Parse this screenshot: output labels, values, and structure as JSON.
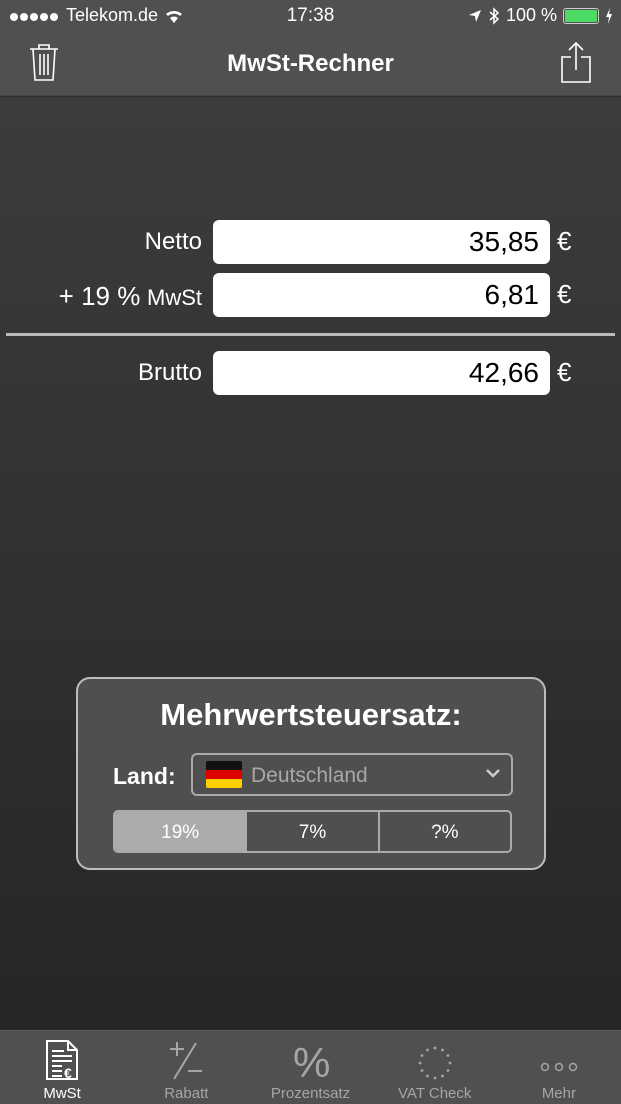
{
  "status": {
    "carrier": "Telekom.de",
    "time": "17:38",
    "battery": "100 %",
    "battery_level": 1.0,
    "battery_color": "#4cd964"
  },
  "nav": {
    "title": "MwSt-Rechner",
    "left_icon": "trash-icon",
    "right_icon": "share-icon"
  },
  "calc": {
    "netto_label": "Netto",
    "netto_value": "35,85",
    "rate_prefix": "+ 19 %",
    "mwst_label": "MwSt",
    "mwst_value": "6,81",
    "brutto_label": "Brutto",
    "brutto_value": "42,66",
    "currency": "€"
  },
  "panel": {
    "title": "Mehrwertsteuersatz:",
    "land_label": "Land:",
    "country": "Deutschland",
    "rates": [
      "19%",
      "7%",
      "?%"
    ],
    "selected_rate": "19%"
  },
  "tabs": [
    {
      "label": "MwSt",
      "icon": "invoice-euro-icon",
      "active": true
    },
    {
      "label": "Rabatt",
      "icon": "plus-minus-icon"
    },
    {
      "label": "Prozentsatz",
      "icon": "percent-icon"
    },
    {
      "label": "VAT Check",
      "icon": "eu-stars-icon"
    },
    {
      "label": "Mehr",
      "icon": "more-icon"
    }
  ]
}
